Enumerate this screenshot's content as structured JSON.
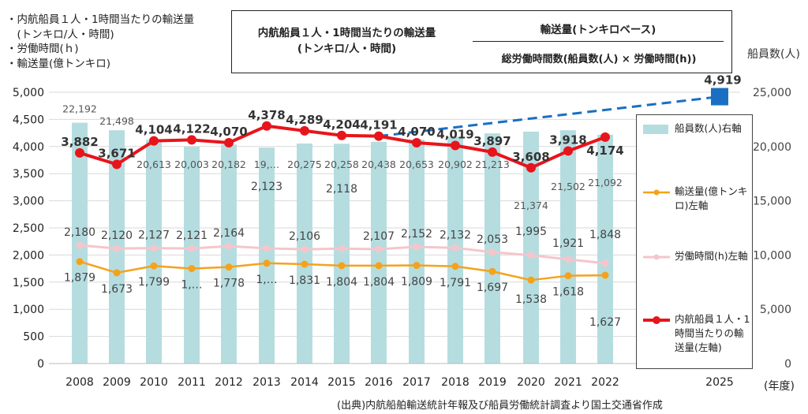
{
  "notes": [
    "・内航船員１人・1時間当たりの輸送量",
    "　(トンキロ/人・時間)",
    "・労働時間(ｈ)",
    "・輸送量(億トンキロ)"
  ],
  "formula": {
    "left_line1": "内航船員１人・1時間当たりの輸送量",
    "left_line2": "(トンキロ/人・時間)",
    "numerator": "輸送量(トンキロベース)",
    "denominator": "総労働時間数(船員数(人) × 労働時間(h))"
  },
  "legend": [
    {
      "id": "crew",
      "label": "船員数(人)右軸",
      "color": "#b5dde0"
    },
    {
      "id": "transport",
      "label": "輸送量(億トンキロ)左軸",
      "color": "#f5a21b"
    },
    {
      "id": "hours",
      "label": "労働時間(h)左軸",
      "color": "#f4c6cc"
    },
    {
      "id": "per_hour",
      "label": "内航船員１人・1時間当たりの輸送量(左軸)",
      "color": "#e8141b"
    }
  ],
  "source": "(出典)内航船舶輸送統計年報及び船員労働統計調査より国土交通省作成",
  "chart_data": {
    "type": "bar",
    "categories": [
      "2008",
      "2009",
      "2010",
      "2011",
      "2012",
      "2013",
      "2014",
      "2015",
      "2016",
      "2017",
      "2018",
      "2019",
      "2020",
      "2021",
      "2022",
      "2025"
    ],
    "x_unit_label": "(年度)",
    "left_axis": {
      "ylim": [
        0,
        5000
      ],
      "ticks": [
        "0",
        "500",
        "1,000",
        "1,500",
        "2,000",
        "2,500",
        "3,000",
        "3,500",
        "4,000",
        "4,500",
        "5,000"
      ]
    },
    "right_axis": {
      "label": "船員数(人)",
      "ylim": [
        0,
        25000
      ],
      "ticks": [
        "0",
        "5,000",
        "10,000",
        "15,000",
        "20,000",
        "25,000"
      ]
    },
    "series": [
      {
        "name": "船員数(人)右軸",
        "kind": "bar",
        "axis": "right",
        "values": [
          22192,
          21498,
          20613,
          20003,
          20182,
          19900,
          20275,
          20258,
          20438,
          20653,
          20902,
          21213,
          21374,
          21502,
          21092,
          null
        ],
        "labels": [
          "22,192",
          "21,498",
          "20,613",
          "20,003",
          "20,182",
          "19,…",
          "20,275",
          "20,258",
          "20,438",
          "20,653",
          "20,902",
          "21,213",
          "21,374",
          "21,502",
          "21,092",
          ""
        ]
      },
      {
        "name": "輸送量(億トンキロ)左軸",
        "kind": "line",
        "axis": "left",
        "values": [
          1879,
          1673,
          1799,
          1750,
          1778,
          1849,
          1831,
          1804,
          1804,
          1809,
          1791,
          1697,
          1538,
          1618,
          1627,
          null
        ],
        "labels": [
          "1,879",
          "1,673",
          "1,799",
          "1,…",
          "1,778",
          "1,…",
          "1,831",
          "1,804",
          "1,804",
          "1,809",
          "1,791",
          "1,697",
          "1,538",
          "1,618",
          "1,627",
          ""
        ]
      },
      {
        "name": "労働時間(h)左軸",
        "kind": "line",
        "axis": "left",
        "values": [
          2180,
          2120,
          2127,
          2121,
          2164,
          2123,
          2106,
          2118,
          2107,
          2152,
          2132,
          2053,
          1995,
          1921,
          1848,
          null
        ],
        "labels": [
          "2,180",
          "2,120",
          "2,127",
          "2,121",
          "2,164",
          "2,123",
          "2,106",
          "2,118",
          "2,107",
          "2,152",
          "2,132",
          "2,053",
          "1,995",
          "1,921",
          "1,848",
          ""
        ]
      },
      {
        "name": "内航船員１人・1時間当たりの輸送量(左軸)",
        "kind": "line",
        "axis": "left",
        "values": [
          3882,
          3671,
          4104,
          4122,
          4070,
          4378,
          4289,
          4204,
          4191,
          4070,
          4019,
          3897,
          3608,
          3918,
          4174,
          null
        ],
        "labels": [
          "3,882",
          "3,671",
          "4,104",
          "4,122",
          "4,070",
          "4,378",
          "4,289",
          "4,204",
          "4,191",
          "4,070",
          "4,019",
          "3,897",
          "3,608",
          "3,918",
          "4,174",
          ""
        ]
      }
    ],
    "target": {
      "category": "2025",
      "value": 4919,
      "label": "4,919",
      "from_category": "2016",
      "from_value": 4191,
      "line_style": "dashed",
      "color": "#1b6fc2"
    }
  }
}
